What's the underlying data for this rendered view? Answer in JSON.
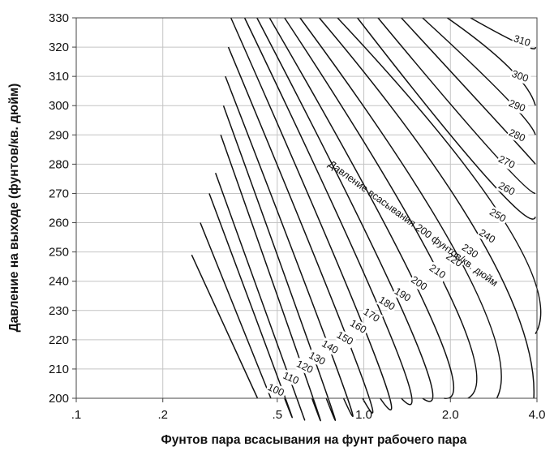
{
  "chart_data": {
    "type": "line",
    "xlabel": "Фунтов пара всасывания на фунт рабочего пара",
    "ylabel": "Давление на выходе (фунтов/кв. дюйм)",
    "x_scale": "log",
    "xlim": [
      0.1,
      4.0
    ],
    "ylim": [
      200,
      330
    ],
    "x_ticks": [
      0.1,
      0.2,
      0.5,
      1.0,
      2.0,
      4.0
    ],
    "x_tick_labels": [
      ".1",
      ".2",
      ".5",
      "1.0",
      "2.0",
      "4.0"
    ],
    "y_ticks": [
      200,
      210,
      220,
      230,
      240,
      250,
      260,
      270,
      280,
      290,
      300,
      310,
      320,
      330
    ],
    "y_tick_labels": [
      "200",
      "210",
      "220",
      "230",
      "240",
      "250",
      "260",
      "270",
      "280",
      "290",
      "300",
      "310",
      "320",
      "330"
    ],
    "grid": true,
    "curve_annotation": "Давление всасывания 200 фунтов/кв. дюйм",
    "series": [
      {
        "name": "100",
        "points": [
          [
            0.252,
            249
          ],
          [
            0.427,
            200
          ]
        ]
      },
      {
        "name": "110",
        "points": [
          [
            0.27,
            260
          ],
          [
            0.475,
            200
          ]
        ]
      },
      {
        "name": "120",
        "points": [
          [
            0.29,
            270
          ],
          [
            0.52,
            203
          ],
          [
            0.53,
            200
          ]
        ]
      },
      {
        "name": "130",
        "points": [
          [
            0.305,
            277
          ],
          [
            0.57,
            203
          ],
          [
            0.585,
            200
          ]
        ]
      },
      {
        "name": "140",
        "points": [
          [
            0.318,
            290
          ],
          [
            0.64,
            205
          ],
          [
            0.66,
            200
          ]
        ]
      },
      {
        "name": "150",
        "points": [
          [
            0.325,
            300
          ],
          [
            0.71,
            207
          ],
          [
            0.74,
            200
          ]
        ]
      },
      {
        "name": "160",
        "points": [
          [
            0.33,
            310
          ],
          [
            0.8,
            211
          ],
          [
            0.85,
            200
          ]
        ]
      },
      {
        "name": "170",
        "points": [
          [
            0.338,
            320
          ],
          [
            0.92,
            215
          ],
          [
            0.99,
            200
          ]
        ]
      },
      {
        "name": "180",
        "points": [
          [
            0.345,
            330
          ],
          [
            1.05,
            219
          ],
          [
            1.14,
            200
          ]
        ]
      },
      {
        "name": "190",
        "points": [
          [
            0.385,
            330
          ],
          [
            1.22,
            223
          ],
          [
            1.35,
            200
          ]
        ]
      },
      {
        "name": "200",
        "points": [
          [
            0.425,
            330
          ],
          [
            1.42,
            226
          ],
          [
            1.6,
            200
          ]
        ]
      },
      {
        "name": "210",
        "points": [
          [
            0.47,
            330
          ],
          [
            1.65,
            231
          ],
          [
            1.9,
            200
          ]
        ]
      },
      {
        "name": "220",
        "points": [
          [
            0.53,
            330
          ],
          [
            1.95,
            237
          ],
          [
            2.3,
            200
          ]
        ]
      },
      {
        "name": "230",
        "points": [
          [
            0.6,
            330
          ],
          [
            2.25,
            244
          ],
          [
            2.9,
            200
          ]
        ]
      },
      {
        "name": "240",
        "points": [
          [
            0.7,
            330
          ],
          [
            2.6,
            253
          ],
          [
            3.9,
            200
          ]
        ]
      },
      {
        "name": "250",
        "points": [
          [
            0.81,
            330
          ],
          [
            3.1,
            260
          ],
          [
            3.95,
            222
          ]
        ]
      },
      {
        "name": "260",
        "points": [
          [
            0.95,
            330
          ],
          [
            2.7,
            275
          ],
          [
            3.95,
            262
          ]
        ]
      },
      {
        "name": "270",
        "points": [
          [
            1.12,
            330
          ],
          [
            2.75,
            285
          ],
          [
            3.95,
            270
          ]
        ]
      },
      {
        "name": "280",
        "points": [
          [
            1.35,
            330
          ],
          [
            3.0,
            293
          ],
          [
            3.95,
            280
          ]
        ]
      },
      {
        "name": "290",
        "points": [
          [
            1.6,
            330
          ],
          [
            3.1,
            303
          ],
          [
            3.95,
            290
          ]
        ]
      },
      {
        "name": "300",
        "points": [
          [
            1.95,
            330
          ],
          [
            3.2,
            313
          ],
          [
            3.95,
            300
          ]
        ]
      },
      {
        "name": "310",
        "points": [
          [
            2.35,
            330
          ],
          [
            3.5,
            321
          ],
          [
            3.95,
            320
          ]
        ]
      }
    ]
  }
}
